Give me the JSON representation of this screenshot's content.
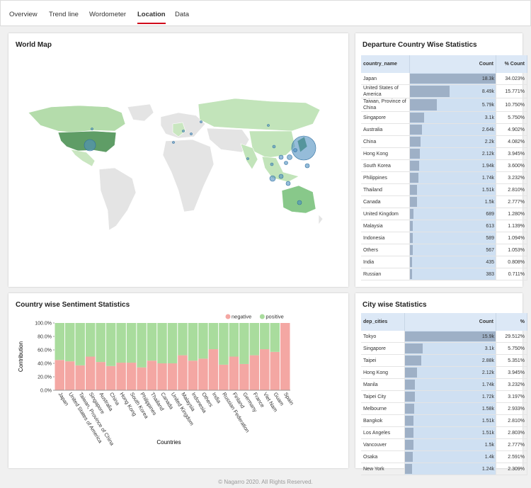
{
  "tabs": [
    "Overview",
    "Trend line",
    "Wordometer",
    "Location",
    "Data"
  ],
  "active_tab": 3,
  "world_map": {
    "title": "World Map"
  },
  "departure_table": {
    "title": "Departure Country Wise Statistics",
    "columns": [
      "country_name",
      "Count",
      "% Count"
    ],
    "rows": [
      {
        "name": "Japan",
        "count": {
          "value": 18300,
          "label": "18.3k"
        },
        "percent": "34.023%"
      },
      {
        "name": "United States of America",
        "count": {
          "value": 8490,
          "label": "8.49k"
        },
        "percent": "15.771%"
      },
      {
        "name": "Taiwan, Province of China",
        "count": {
          "value": 5790,
          "label": "5.79k"
        },
        "percent": "10.750%"
      },
      {
        "name": "Singapore",
        "count": {
          "value": 3100,
          "label": "3.1k"
        },
        "percent": "5.750%"
      },
      {
        "name": "Australia",
        "count": {
          "value": 2640,
          "label": "2.64k"
        },
        "percent": "4.902%"
      },
      {
        "name": "China",
        "count": {
          "value": 2200,
          "label": "2.2k"
        },
        "percent": "4.082%"
      },
      {
        "name": "Hong Kong",
        "count": {
          "value": 2120,
          "label": "2.12k"
        },
        "percent": "3.945%"
      },
      {
        "name": "South Korea",
        "count": {
          "value": 1940,
          "label": "1.94k"
        },
        "percent": "3.600%"
      },
      {
        "name": "Philippines",
        "count": {
          "value": 1740,
          "label": "1.74k"
        },
        "percent": "3.232%"
      },
      {
        "name": "Thailand",
        "count": {
          "value": 1510,
          "label": "1.51k"
        },
        "percent": "2.810%"
      },
      {
        "name": "Canada",
        "count": {
          "value": 1500,
          "label": "1.5k"
        },
        "percent": "2.777%"
      },
      {
        "name": "United Kingdom",
        "count": 689,
        "percent": "1.280%"
      },
      {
        "name": "Malaysia",
        "count": 613,
        "percent": "1.139%"
      },
      {
        "name": "Indonesia",
        "count": 589,
        "percent": "1.094%"
      },
      {
        "name": "Others",
        "count": 567,
        "percent": "1.053%"
      },
      {
        "name": "India",
        "count": 435,
        "percent": "0.808%"
      },
      {
        "name": "Russian",
        "count": 383,
        "percent": "0.711%"
      }
    ]
  },
  "city_table": {
    "title": "City wise Statistics",
    "columns": [
      "dep_cities",
      "Count",
      "%"
    ],
    "rows": [
      {
        "name": "Tokyo",
        "count": {
          "value": 15900,
          "label": "15.9k"
        },
        "percent": "29.512%"
      },
      {
        "name": "Singapore",
        "count": {
          "value": 3100,
          "label": "3.1k"
        },
        "percent": "5.750%"
      },
      {
        "name": "Taipei",
        "count": {
          "value": 2880,
          "label": "2.88k"
        },
        "percent": "5.351%"
      },
      {
        "name": "Hong Kong",
        "count": {
          "value": 2120,
          "label": "2.12k"
        },
        "percent": "3.945%"
      },
      {
        "name": "Manila",
        "count": {
          "value": 1740,
          "label": "1.74k"
        },
        "percent": "3.232%"
      },
      {
        "name": "Taipei City",
        "count": {
          "value": 1720,
          "label": "1.72k"
        },
        "percent": "3.197%"
      },
      {
        "name": "Melbourne",
        "count": {
          "value": 1580,
          "label": "1.58k"
        },
        "percent": "2.933%"
      },
      {
        "name": "Bangkok",
        "count": {
          "value": 1510,
          "label": "1.51k"
        },
        "percent": "2.810%"
      },
      {
        "name": "Los Angeles",
        "count": {
          "value": 1510,
          "label": "1.51k"
        },
        "percent": "2.803%"
      },
      {
        "name": "Vancouver",
        "count": {
          "value": 1500,
          "label": "1.5k"
        },
        "percent": "2.777%"
      },
      {
        "name": "Osaka",
        "count": {
          "value": 1400,
          "label": "1.4k"
        },
        "percent": "2.591%"
      },
      {
        "name": "New York",
        "count": {
          "value": 1240,
          "label": "1.24k"
        },
        "percent": "2.309%"
      }
    ]
  },
  "chart_data": {
    "type": "stacked_bar",
    "title": "Country wise Sentiment Statistics",
    "x_label": "Countries",
    "y_label": "Contribution",
    "categories": [
      "Japan",
      "United States of America",
      "Taiwan, Province of China",
      "Singapore",
      "Australia",
      "China",
      "Hong Kong",
      "South Korea",
      "Philippines",
      "Thailand",
      "Canada",
      "United Kingdom",
      "Malaysia",
      "Indonesia",
      "Others",
      "India",
      "Russian Federation",
      "Finland",
      "Germany",
      "France",
      "Viet Nam",
      "Guam",
      "Spain"
    ],
    "series": [
      {
        "name": "negative",
        "color": "#f4a7a3",
        "values": [
          45,
          43,
          37,
          50,
          42,
          36,
          41,
          41,
          34,
          44,
          40,
          40,
          52,
          44,
          47,
          61,
          38,
          50,
          39,
          52,
          61,
          57,
          100
        ]
      },
      {
        "name": "positive",
        "color": "#a9dc9d",
        "values": [
          55,
          57,
          63,
          50,
          58,
          64,
          59,
          59,
          66,
          56,
          60,
          60,
          48,
          56,
          53,
          39,
          62,
          50,
          61,
          48,
          39,
          43,
          0
        ]
      }
    ],
    "ylim": [
      0,
      100
    ],
    "yticks": [
      {
        "value": 0,
        "label": "0.0%"
      },
      {
        "value": 20,
        "label": "20.0%"
      },
      {
        "value": 40,
        "label": "40.0%"
      },
      {
        "value": 60,
        "label": "60.0%"
      },
      {
        "value": 80,
        "label": "80.0%"
      },
      {
        "value": 100,
        "label": "100.0%"
      }
    ],
    "legend": "top-right"
  },
  "footer": "© Nagarro 2020. All Rights Reserved."
}
